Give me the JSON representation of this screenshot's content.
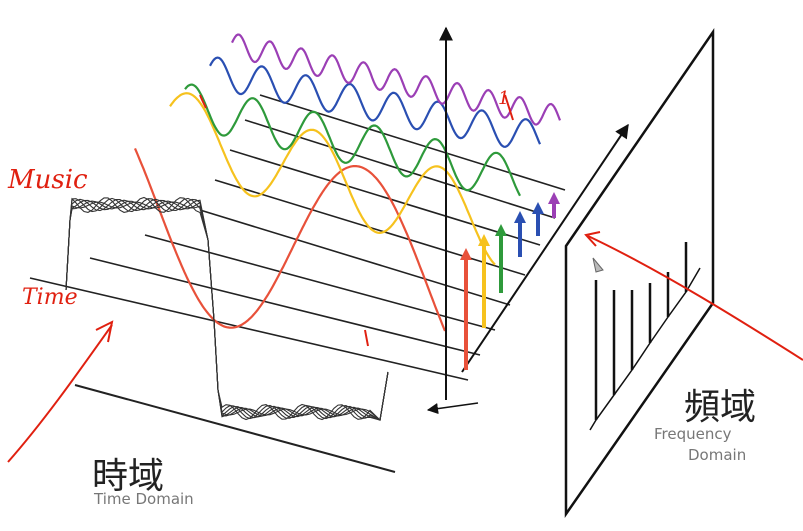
{
  "time_domain": {
    "title_cn": "時域",
    "title_en": "Time Domain"
  },
  "frequency_domain": {
    "title_cn": "頻域",
    "title_en": "Frequency Domain"
  },
  "annotations": {
    "music": "Music",
    "time": "Time",
    "one": "1"
  },
  "colors": {
    "harmonics": [
      "#e8513a",
      "#f6c21e",
      "#2e9a3b",
      "#2a4fb2",
      "#9b3fb5"
    ],
    "annotation": "#e02010",
    "axes": "#111111"
  }
}
